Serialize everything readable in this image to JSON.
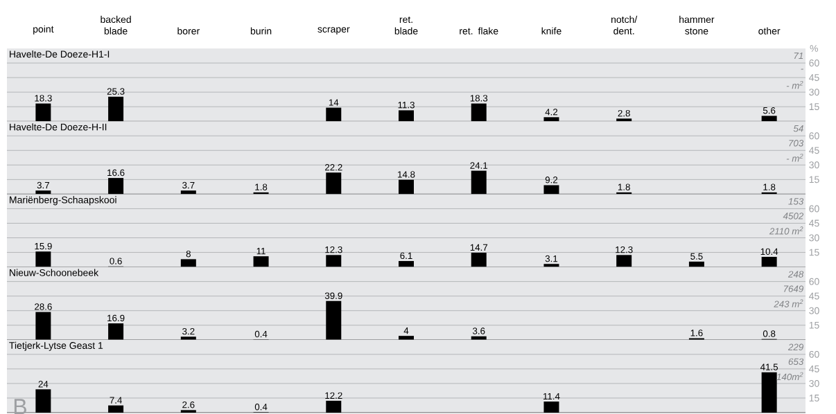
{
  "chart_data": [
    {
      "type": "bar",
      "title": "Havelte-De Doeze-H1-I",
      "ylabel": "%",
      "categories": [
        "point",
        "backed blade",
        "borer",
        "burin",
        "scraper",
        "ret. blade",
        "ret. flake",
        "knife",
        "notch/ dent.",
        "hammer stone",
        "other"
      ],
      "values": [
        18.3,
        25.3,
        null,
        null,
        14,
        11.3,
        18.3,
        4.2,
        2.8,
        null,
        5.6
      ],
      "color": "#000000",
      "ylim": [
        0,
        75
      ],
      "yticks": [
        15,
        30,
        45,
        60
      ],
      "grid": "y",
      "data_labels": true,
      "annotations": [
        "71",
        "-",
        "- m$^{2}$"
      ]
    },
    {
      "type": "bar",
      "title": "Havelte-De Doeze-H-II",
      "categories": [
        null,
        null,
        null,
        null,
        null,
        null,
        null,
        null,
        null,
        null,
        null
      ],
      "values": [
        3.7,
        16.6,
        3.7,
        1.8,
        22.2,
        14.8,
        24.1,
        9.2,
        1.8,
        null,
        1.8
      ],
      "color": "#000000",
      "ylim": [
        0,
        75
      ],
      "yticks": [
        15,
        30,
        45,
        60
      ],
      "grid": "y",
      "data_labels": true,
      "tick_labels": "y",
      "annotations": [
        "54",
        "703",
        "- m$^{2}$"
      ]
    },
    {
      "type": "bar",
      "title": "Mariënberg-Schaapskooi",
      "categories": [
        null,
        null,
        null,
        null,
        null,
        null,
        null,
        null,
        null,
        null,
        null
      ],
      "values": [
        15.9,
        0.6,
        8,
        11,
        12.3,
        6.1,
        14.7,
        3.1,
        12.3,
        5.5,
        10.4
      ],
      "color": "#000000",
      "ylim": [
        0,
        75
      ],
      "yticks": [
        15,
        30,
        45,
        60
      ],
      "grid": "y",
      "data_labels": true,
      "tick_labels": "y",
      "annotations": [
        "153",
        "4502",
        "2110 m$^{2}$"
      ]
    },
    {
      "type": "bar",
      "title": "Nieuw-Schoonebeek",
      "categories": [
        null,
        null,
        null,
        null,
        null,
        null,
        null,
        null,
        null,
        null,
        null
      ],
      "values": [
        28.6,
        16.9,
        3.2,
        0.4,
        39.9,
        4,
        3.6,
        null,
        null,
        1.6,
        0.8
      ],
      "color": "#000000",
      "ylim": [
        0,
        75
      ],
      "yticks": [
        15,
        30,
        45,
        60
      ],
      "grid": "y",
      "data_labels": true,
      "tick_labels": "y",
      "annotations": [
        "248",
        "7649",
        "243 m$^{2}$"
      ]
    },
    {
      "type": "bar",
      "title": "Tietjerk-Lytse Geast 1",
      "categories": [
        null,
        null,
        null,
        null,
        null,
        null,
        null,
        null,
        null,
        null,
        null
      ],
      "values": [
        24,
        7.4,
        2.6,
        0.4,
        12.2,
        null,
        null,
        11.4,
        null,
        null,
        41.5
      ],
      "color": "#000000",
      "ylim": [
        0,
        75
      ],
      "yticks": [
        15,
        30,
        45,
        60
      ],
      "grid": "y",
      "data_labels": true,
      "tick_labels": "y",
      "annotations": [
        "229",
        "653",
        "140m$^{2}$",
        "B"
      ]
    }
  ]
}
